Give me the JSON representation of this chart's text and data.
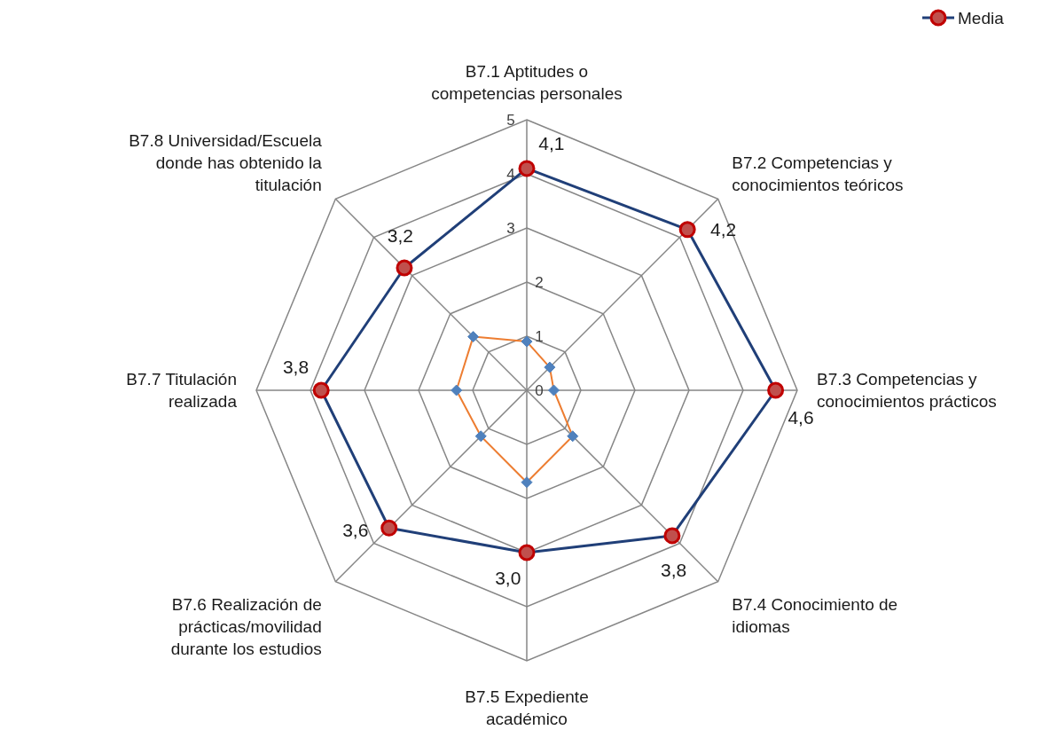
{
  "chart_data": {
    "type": "radar",
    "categories": [
      "B7.1 Aptitudes o competencias personales",
      "B7.2 Competencias y conocimientos teóricos",
      "B7.3 Competencias y conocimientos prácticos",
      "B7.4 Conocimiento de idiomas",
      "B7.5 Expediente académico",
      "B7.6 Realización de prácticas/movilidad durante los estudios",
      "B7.7 Titulación realizada",
      "B7.8 Universidad/Escuela donde has obtenido la titulación"
    ],
    "series": [
      {
        "name": "Media",
        "color": "#203f78",
        "marker": "circle",
        "values": [
          4.1,
          4.2,
          4.6,
          3.8,
          3.0,
          3.6,
          3.8,
          3.2
        ],
        "value_labels": [
          "4,1",
          "4,2",
          "4,6",
          "3,8",
          "3,0",
          "3,6",
          "3,8",
          "3,2"
        ]
      },
      {
        "color": "#ed7d31",
        "marker": "diamond",
        "values": [
          0.9,
          0.6,
          0.5,
          1.2,
          1.7,
          1.2,
          1.3,
          1.4
        ]
      }
    ],
    "ylim": [
      0,
      5
    ],
    "yticks": [
      0,
      1,
      2,
      3,
      4,
      5
    ],
    "grid": true,
    "legend": "top right"
  }
}
